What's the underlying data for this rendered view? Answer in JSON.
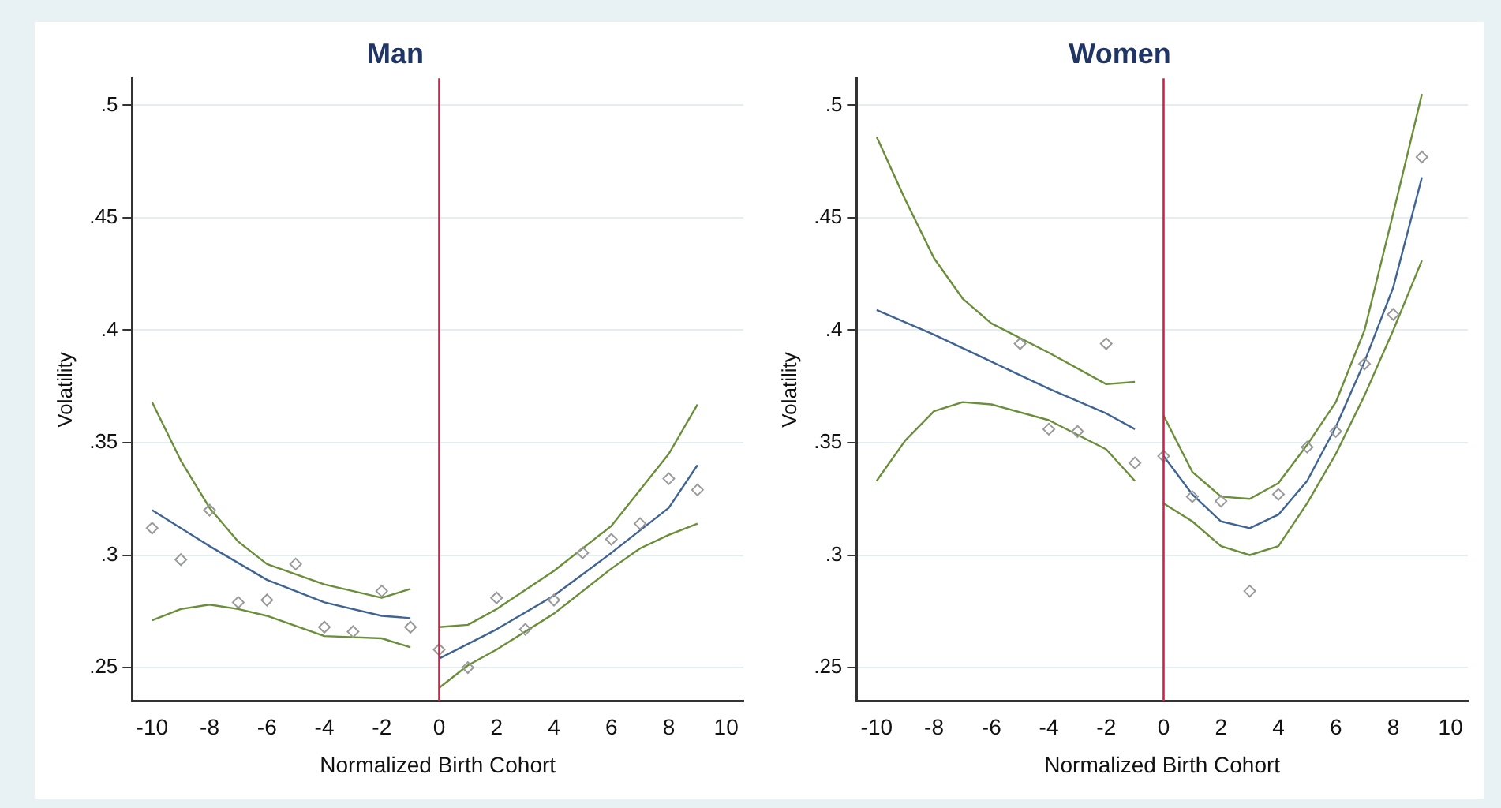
{
  "chart_data": [
    {
      "type": "scatter",
      "title": "Man",
      "xlabel": "Normalized Birth Cohort",
      "ylabel": "Volatility",
      "xlim": [
        -10.7,
        10.6
      ],
      "xticks": [
        -10,
        -8,
        -6,
        -4,
        -2,
        0,
        2,
        4,
        6,
        8,
        10
      ],
      "ylim": [
        0.235,
        0.512
      ],
      "yticks": [
        {
          "value": 0.25,
          "label": ".25"
        },
        {
          "value": 0.3,
          "label": ".3"
        },
        {
          "value": 0.35,
          "label": ".35"
        },
        {
          "value": 0.4,
          "label": ".4"
        },
        {
          "value": 0.45,
          "label": ".45"
        },
        {
          "value": 0.5,
          "label": ".5"
        }
      ],
      "grid": "y",
      "legend": false,
      "ref_lines": [
        {
          "axis": "x",
          "value": 0,
          "color": "#d0214a"
        }
      ],
      "series": [
        {
          "type": "scatter",
          "marker": "diamond",
          "color": "#9a9a9a",
          "x": [
            -10,
            -9,
            -8,
            -7,
            -6,
            -5,
            -4,
            -3,
            -2,
            -1,
            0,
            1,
            2,
            3,
            4,
            5,
            6,
            7,
            8,
            9
          ],
          "values": [
            0.312,
            0.298,
            0.32,
            0.279,
            0.28,
            0.296,
            0.268,
            0.266,
            0.284,
            0.268,
            0.258,
            0.25,
            0.281,
            0.267,
            0.28,
            0.301,
            0.307,
            0.314,
            0.334,
            0.329
          ]
        },
        {
          "type": "line",
          "marker": "none",
          "color": "#6b8e3a",
          "x": [
            -10,
            -9,
            -8,
            -7,
            -6,
            -4,
            -2,
            -1
          ],
          "values": [
            0.368,
            0.342,
            0.321,
            0.306,
            0.296,
            0.287,
            0.281,
            0.285
          ]
        },
        {
          "type": "line",
          "marker": "none",
          "color": "#3f6494",
          "x": [
            -10,
            -8,
            -6,
            -4,
            -2,
            -1
          ],
          "values": [
            0.32,
            0.304,
            0.289,
            0.279,
            0.273,
            0.272
          ]
        },
        {
          "type": "line",
          "marker": "none",
          "color": "#6b8e3a",
          "x": [
            -10,
            -9,
            -8,
            -7,
            -6,
            -4,
            -2,
            -1
          ],
          "values": [
            0.271,
            0.276,
            0.278,
            0.276,
            0.273,
            0.264,
            0.263,
            0.259
          ]
        },
        {
          "type": "line",
          "marker": "none",
          "color": "#6b8e3a",
          "x": [
            0,
            1,
            2,
            4,
            6,
            8,
            9
          ],
          "values": [
            0.268,
            0.269,
            0.276,
            0.293,
            0.313,
            0.345,
            0.367
          ]
        },
        {
          "type": "line",
          "marker": "none",
          "color": "#3f6494",
          "x": [
            0,
            2,
            4,
            6,
            8,
            9
          ],
          "values": [
            0.254,
            0.267,
            0.282,
            0.301,
            0.321,
            0.34
          ]
        },
        {
          "type": "line",
          "marker": "none",
          "color": "#6b8e3a",
          "x": [
            0,
            1,
            2,
            4,
            6,
            7,
            8,
            9
          ],
          "values": [
            0.241,
            0.251,
            0.258,
            0.274,
            0.294,
            0.303,
            0.309,
            0.314
          ]
        }
      ]
    },
    {
      "type": "scatter",
      "title": "Women",
      "xlabel": "Normalized Birth Cohort",
      "ylabel": "Volatility",
      "xlim": [
        -10.7,
        10.6
      ],
      "xticks": [
        -10,
        -8,
        -6,
        -4,
        -2,
        0,
        2,
        4,
        6,
        8,
        10
      ],
      "ylim": [
        0.235,
        0.512
      ],
      "yticks": [
        {
          "value": 0.25,
          "label": ".25"
        },
        {
          "value": 0.3,
          "label": ".3"
        },
        {
          "value": 0.35,
          "label": ".35"
        },
        {
          "value": 0.4,
          "label": ".4"
        },
        {
          "value": 0.45,
          "label": ".45"
        },
        {
          "value": 0.5,
          "label": ".5"
        }
      ],
      "grid": "y",
      "legend": false,
      "ref_lines": [
        {
          "axis": "x",
          "value": 0,
          "color": "#d0214a"
        }
      ],
      "series": [
        {
          "type": "scatter",
          "marker": "diamond",
          "color": "#9a9a9a",
          "x": [
            -5,
            -4,
            -3,
            -2,
            -1,
            0,
            1,
            2,
            3,
            4,
            5,
            6,
            7,
            8,
            9
          ],
          "values": [
            0.394,
            0.356,
            0.355,
            0.394,
            0.341,
            0.344,
            0.326,
            0.324,
            0.284,
            0.327,
            0.348,
            0.355,
            0.385,
            0.407,
            0.477
          ]
        },
        {
          "type": "line",
          "marker": "none",
          "color": "#6b8e3a",
          "x": [
            -10,
            -9,
            -8,
            -7,
            -6,
            -4,
            -2,
            -1
          ],
          "values": [
            0.486,
            0.458,
            0.432,
            0.414,
            0.403,
            0.39,
            0.376,
            0.377
          ]
        },
        {
          "type": "line",
          "marker": "none",
          "color": "#3f6494",
          "x": [
            -10,
            -8,
            -6,
            -4,
            -2,
            -1
          ],
          "values": [
            0.409,
            0.398,
            0.386,
            0.374,
            0.363,
            0.356
          ]
        },
        {
          "type": "line",
          "marker": "none",
          "color": "#6b8e3a",
          "x": [
            -10,
            -9,
            -8,
            -7,
            -6,
            -4,
            -2,
            -1
          ],
          "values": [
            0.333,
            0.351,
            0.364,
            0.368,
            0.367,
            0.36,
            0.347,
            0.333
          ]
        },
        {
          "type": "line",
          "marker": "none",
          "color": "#6b8e3a",
          "x": [
            0,
            1,
            2,
            3,
            4,
            5,
            6,
            7,
            8,
            9
          ],
          "values": [
            0.362,
            0.337,
            0.326,
            0.325,
            0.332,
            0.349,
            0.368,
            0.4,
            0.452,
            0.505
          ]
        },
        {
          "type": "line",
          "marker": "none",
          "color": "#3f6494",
          "x": [
            0,
            1,
            2,
            3,
            4,
            5,
            6,
            7,
            8,
            9
          ],
          "values": [
            0.344,
            0.327,
            0.315,
            0.312,
            0.318,
            0.333,
            0.357,
            0.386,
            0.419,
            0.468
          ]
        },
        {
          "type": "line",
          "marker": "none",
          "color": "#6b8e3a",
          "x": [
            0,
            1,
            2,
            3,
            4,
            5,
            6,
            7,
            8,
            9
          ],
          "values": [
            0.323,
            0.315,
            0.304,
            0.3,
            0.304,
            0.323,
            0.345,
            0.371,
            0.4,
            0.431
          ]
        }
      ]
    }
  ]
}
